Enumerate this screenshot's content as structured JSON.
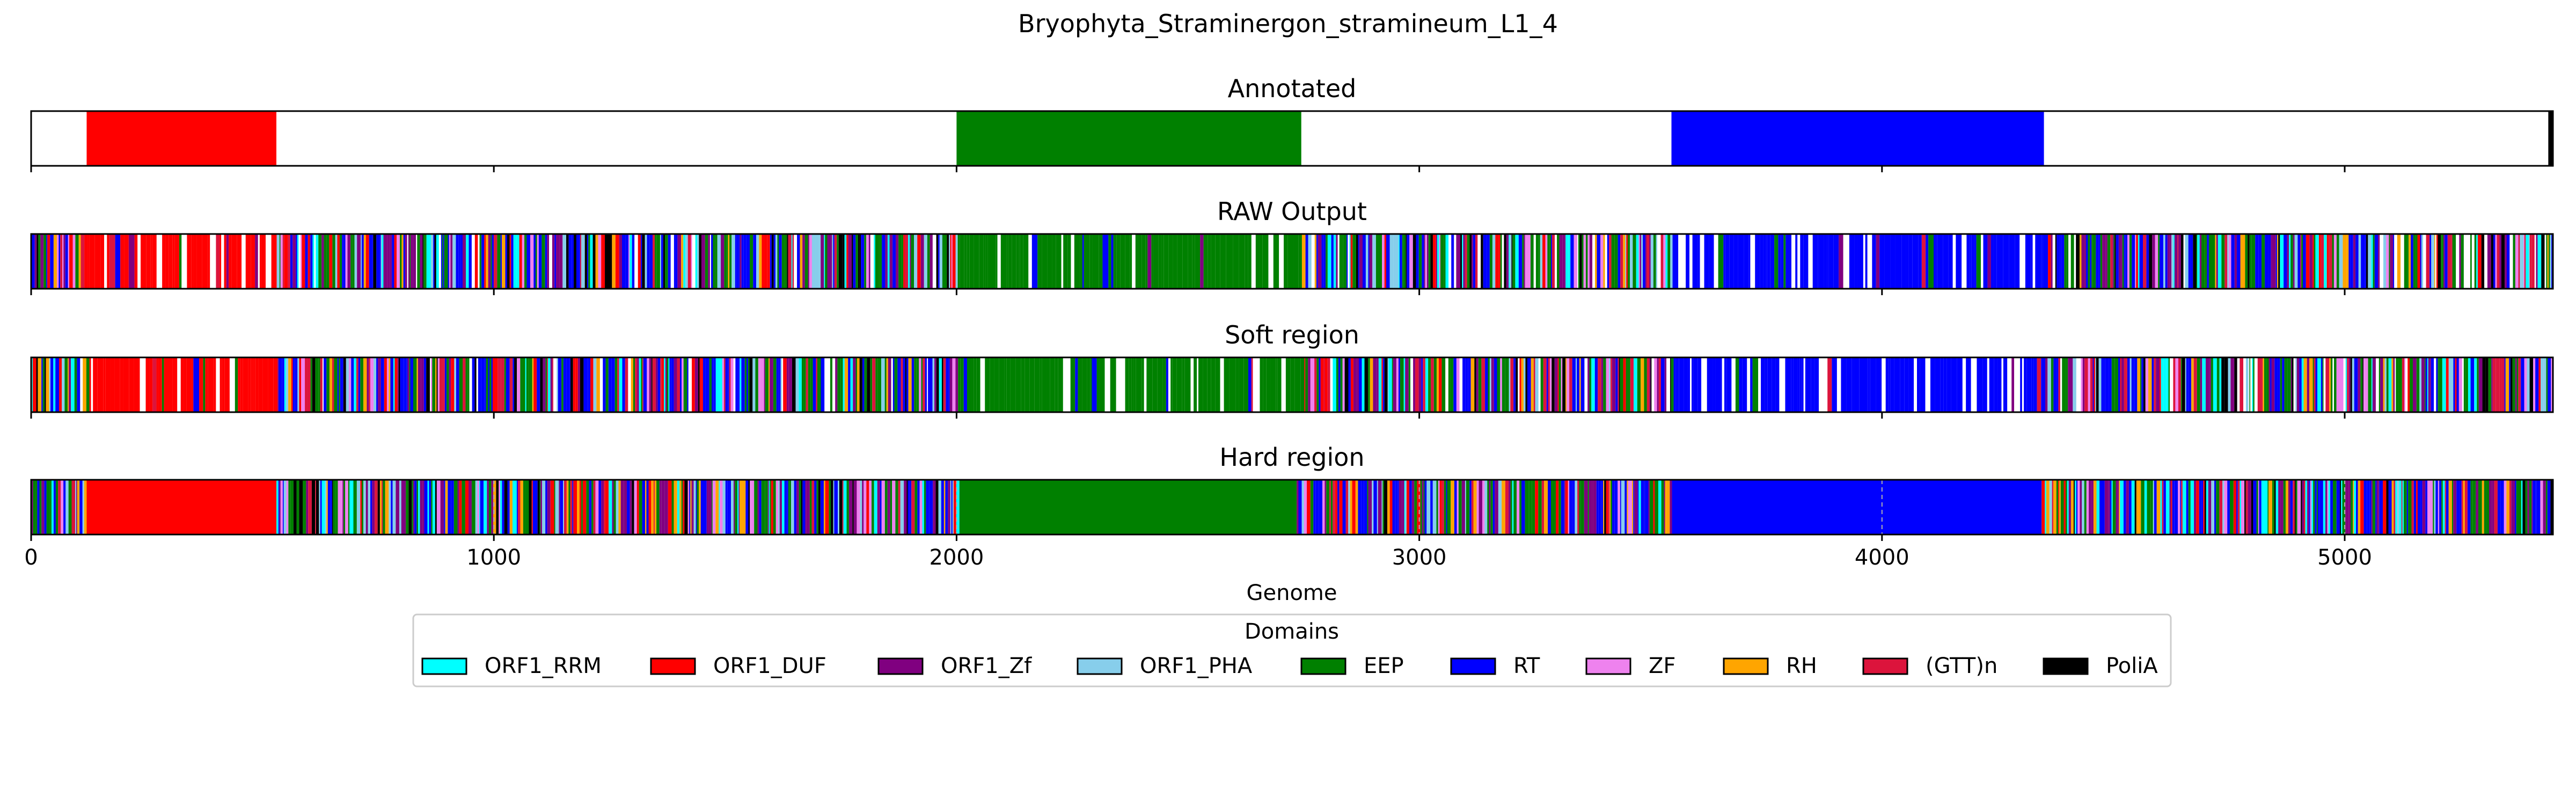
{
  "chart_data": {
    "type": "genome-track",
    "title": "Bryophyta_Straminergon_stramineum_L1_4",
    "xlabel": "Genome",
    "xlim": [
      0,
      5450
    ],
    "xticks": [
      "0",
      "1000",
      "2000",
      "3000",
      "4000",
      "5000"
    ],
    "xtick_values": [
      0,
      1000,
      2000,
      3000,
      4000,
      5000
    ],
    "legend": {
      "title": "Domains",
      "placement": "bottom-center",
      "entries": [
        {
          "label": "ORF1_RRM",
          "color": "#00ffff"
        },
        {
          "label": "ORF1_DUF",
          "color": "#ff0000"
        },
        {
          "label": "ORF1_Zf",
          "color": "#800080"
        },
        {
          "label": "ORF1_PHA",
          "color": "#87ceeb"
        },
        {
          "label": "EEP",
          "color": "#008000"
        },
        {
          "label": "RT",
          "color": "#0000ff"
        },
        {
          "label": "ZF",
          "color": "#ee82ee"
        },
        {
          "label": "RH",
          "color": "#ffa500"
        },
        {
          "label": "(GTT)n",
          "color": "#dc143c"
        },
        {
          "label": "PoliA",
          "color": "#000000"
        }
      ]
    },
    "panels": [
      {
        "title": "Annotated",
        "kind": "annotated",
        "segments": [
          {
            "domain": "ORF1_DUF",
            "start": 120,
            "end": 530
          },
          {
            "domain": "EEP",
            "start": 2000,
            "end": 2745
          },
          {
            "domain": "RT",
            "start": 3545,
            "end": 4350
          },
          {
            "domain": "PoliA",
            "start": 5440,
            "end": 5450
          }
        ]
      },
      {
        "title": "RAW Output",
        "kind": "raw",
        "dominant": [
          {
            "domain": "ORF1_DUF",
            "start": 120,
            "end": 530
          },
          {
            "domain": "EEP",
            "start": 2000,
            "end": 2745
          },
          {
            "domain": "RT",
            "start": 3545,
            "end": 4350
          }
        ]
      },
      {
        "title": "Soft region",
        "kind": "soft",
        "dominant": [
          {
            "domain": "ORF1_DUF",
            "start": 120,
            "end": 530
          },
          {
            "domain": "EEP",
            "start": 2000,
            "end": 2745
          },
          {
            "domain": "RT",
            "start": 3545,
            "end": 4350
          }
        ]
      },
      {
        "title": "Hard region",
        "kind": "hard",
        "dominant": [
          {
            "domain": "ORF1_DUF",
            "start": 115,
            "end": 530
          },
          {
            "domain": "EEP",
            "start": 2000,
            "end": 2735
          },
          {
            "domain": "RT",
            "start": 3545,
            "end": 4345
          }
        ]
      }
    ]
  }
}
